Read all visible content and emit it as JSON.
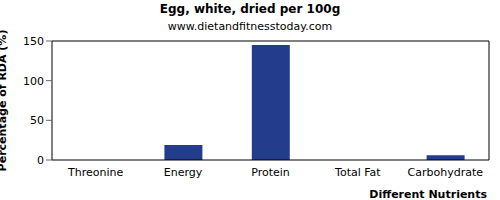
{
  "chart_data": {
    "type": "bar",
    "title": "Egg, white, dried per 100g",
    "subtitle": "www.dietandfitnesstoday.com",
    "x_label": "Different Nutrients",
    "y_label": "Percentage of RDA (%)",
    "categories": [
      "Threonine",
      "Energy",
      "Protein",
      "Total Fat",
      "Carbohydrate"
    ],
    "values": [
      0,
      19,
      145,
      0,
      6
    ],
    "color": "#233d8c",
    "ylim": [
      0,
      150
    ],
    "yticks": [
      0,
      50,
      100,
      150
    ],
    "grid": false
  }
}
